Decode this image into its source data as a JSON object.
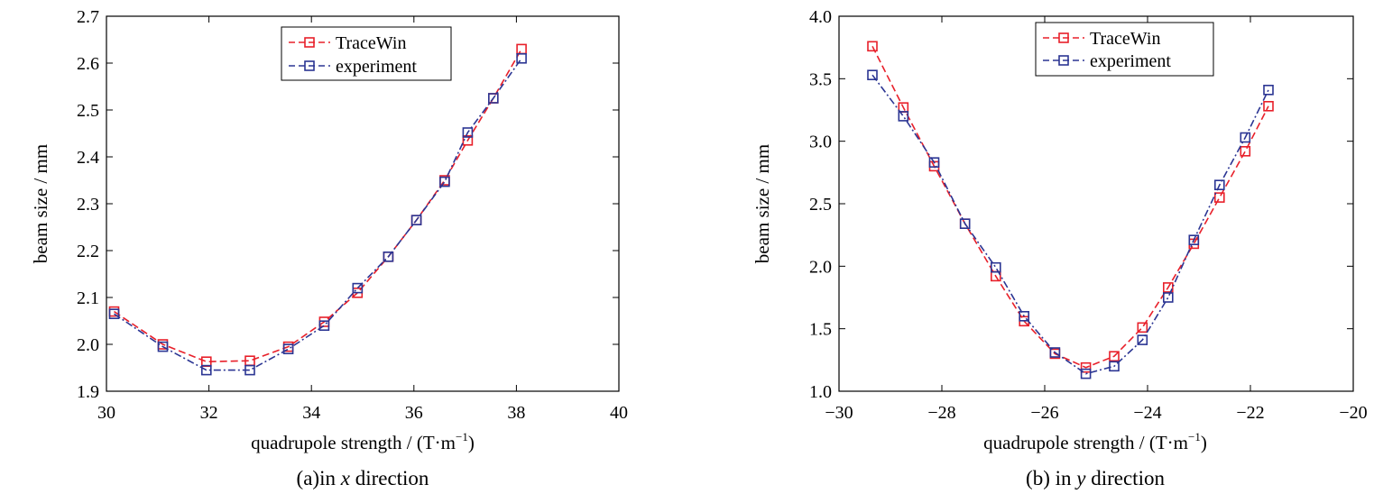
{
  "chart_data": [
    {
      "type": "line",
      "caption_prefix": "(a)in ",
      "caption_var": "x",
      "caption_suffix": " direction",
      "xlabel": "quadrupole strength / (T·m",
      "xlabel_sup": "−1",
      "xlabel_end": ")",
      "ylabel": "beam size / mm",
      "xlim": [
        30,
        40
      ],
      "ylim": [
        1.9,
        2.7
      ],
      "xticks": [
        "30",
        "32",
        "34",
        "36",
        "38",
        "40"
      ],
      "yticks": [
        "1.9",
        "2.0",
        "2.1",
        "2.2",
        "2.3",
        "2.4",
        "2.5",
        "2.6",
        "2.7"
      ],
      "legend_position": "top-center",
      "grid": false,
      "series": [
        {
          "name": "TraceWin",
          "color": "#e8202a",
          "x": [
            30.15,
            31.1,
            31.95,
            32.8,
            33.55,
            34.25,
            34.9,
            35.5,
            36.05,
            36.6,
            37.05,
            37.55,
            38.1
          ],
          "y": [
            2.07,
            2.0,
            1.963,
            1.965,
            1.995,
            2.048,
            2.11,
            2.187,
            2.265,
            2.35,
            2.435,
            2.525,
            2.63
          ]
        },
        {
          "name": "experiment",
          "color": "#2b3593",
          "x": [
            30.15,
            31.1,
            31.95,
            32.8,
            33.55,
            34.25,
            34.9,
            35.5,
            36.05,
            36.6,
            37.05,
            37.55,
            38.1
          ],
          "y": [
            2.065,
            1.995,
            1.945,
            1.945,
            1.99,
            2.04,
            2.12,
            2.187,
            2.265,
            2.347,
            2.452,
            2.525,
            2.61
          ]
        }
      ]
    },
    {
      "type": "line",
      "caption_prefix": "(b) in ",
      "caption_var": "y",
      "caption_suffix": " direction",
      "xlabel": "quadrupole strength / (T·m",
      "xlabel_sup": "−1",
      "xlabel_end": ")",
      "ylabel": "beam size / mm",
      "xlim": [
        -30,
        -20
      ],
      "ylim": [
        1.0,
        4.0
      ],
      "xticks": [
        "−30",
        "−28",
        "−26",
        "−24",
        "−22",
        "−20"
      ],
      "yticks": [
        "1.0",
        "1.5",
        "2.0",
        "2.5",
        "3.0",
        "3.5",
        "4.0"
      ],
      "legend_position": "top-center",
      "grid": false,
      "series": [
        {
          "name": "TraceWin",
          "color": "#e8202a",
          "x": [
            -29.35,
            -28.75,
            -28.15,
            -27.55,
            -26.95,
            -26.4,
            -25.8,
            -25.2,
            -24.65,
            -24.1,
            -23.6,
            -23.1,
            -22.6,
            -22.1,
            -21.65
          ],
          "y": [
            3.76,
            3.27,
            2.8,
            2.34,
            1.92,
            1.56,
            1.3,
            1.19,
            1.28,
            1.51,
            1.83,
            2.18,
            2.55,
            2.92,
            3.28
          ]
        },
        {
          "name": "experiment",
          "color": "#2b3593",
          "x": [
            -29.35,
            -28.75,
            -28.15,
            -27.55,
            -26.95,
            -26.4,
            -25.8,
            -25.2,
            -24.65,
            -24.1,
            -23.6,
            -23.1,
            -22.6,
            -22.1,
            -21.65
          ],
          "y": [
            3.53,
            3.2,
            2.83,
            2.34,
            1.99,
            1.6,
            1.31,
            1.14,
            1.2,
            1.41,
            1.75,
            2.21,
            2.65,
            3.03,
            3.41
          ]
        }
      ]
    }
  ]
}
